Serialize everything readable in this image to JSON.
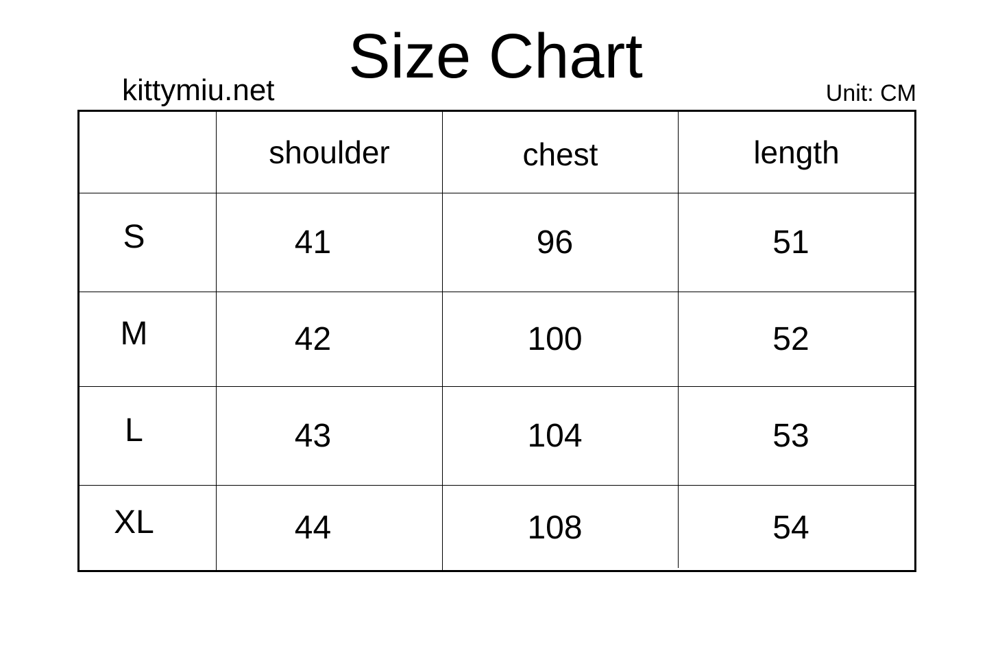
{
  "title": "Size Chart",
  "site": "kittymiu.net",
  "unit": "Unit: CM",
  "table": {
    "columns": [
      "",
      "shoulder",
      "chest",
      "length"
    ],
    "rows": [
      {
        "size": "S",
        "shoulder": "41",
        "chest": "96",
        "length": "51"
      },
      {
        "size": "M",
        "shoulder": "42",
        "chest": "100",
        "length": "52"
      },
      {
        "size": "L",
        "shoulder": "43",
        "chest": "104",
        "length": "53"
      },
      {
        "size": "XL",
        "shoulder": "44",
        "chest": "108",
        "length": "54"
      }
    ]
  }
}
